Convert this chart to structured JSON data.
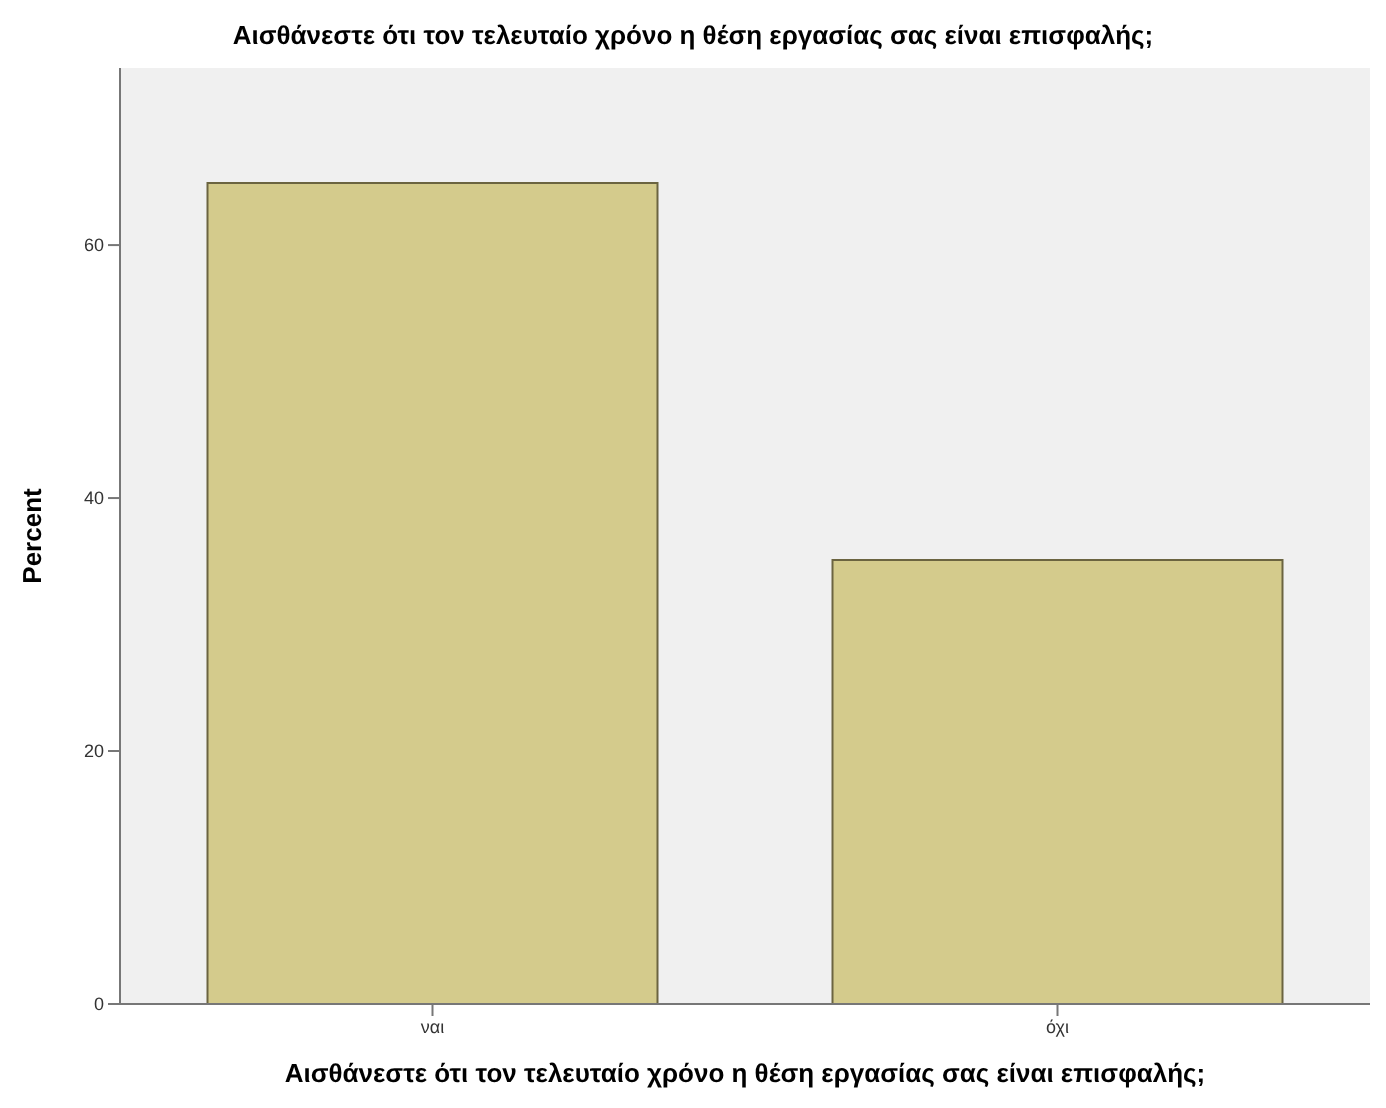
{
  "chart_data": {
    "type": "bar",
    "title": "Αισθάνεστε ότι τον τελευταίο χρόνο η θέση εργασίας σας είναι επισφαλής;",
    "xlabel": "Αισθάνεστε ότι τον τελευταίο χρόνο η θέση εργασίας σας είναι επισφαλής;",
    "ylabel": "Percent",
    "categories": [
      "ναι",
      "όχι"
    ],
    "values": [
      64.9,
      35.1
    ],
    "color": "#d4cb8c",
    "ylim": [
      0,
      74
    ],
    "yticks": [
      0,
      20,
      40,
      60
    ],
    "grid": false
  }
}
